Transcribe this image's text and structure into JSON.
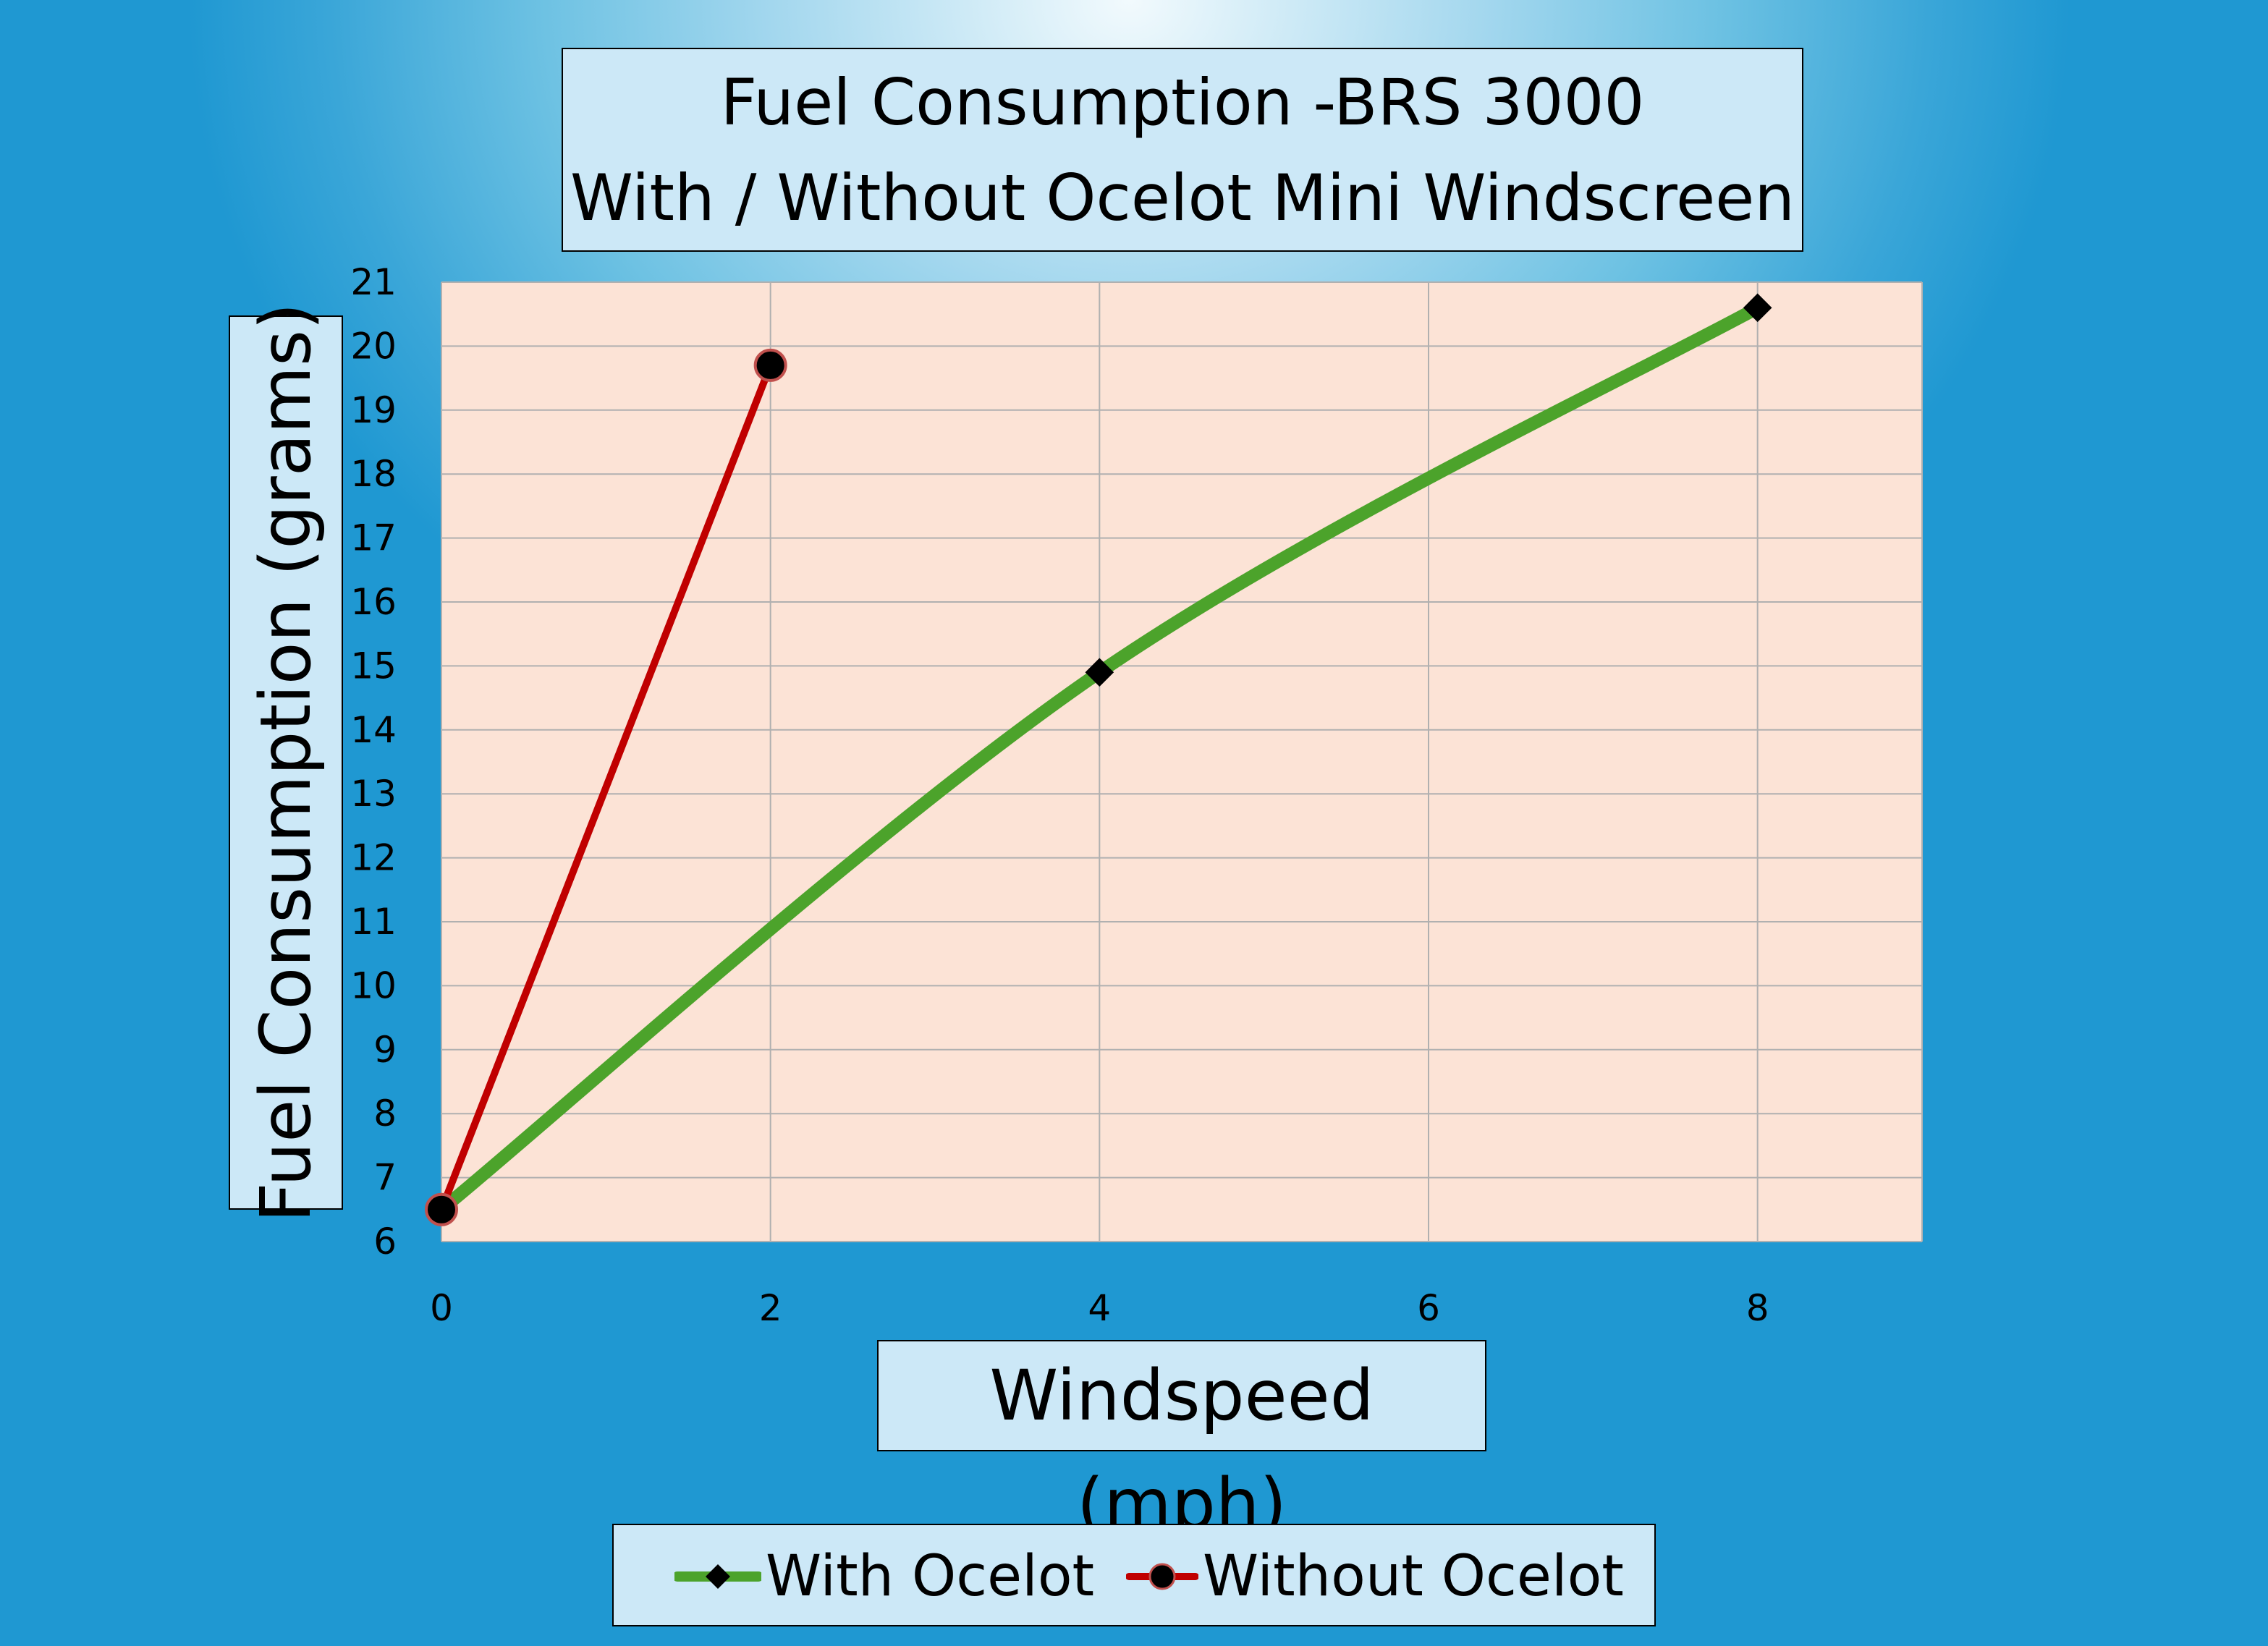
{
  "colors": {
    "plot_bg": "#fce3d6",
    "grid": "#b0b0b0",
    "with_line": "#4ca32b",
    "with_marker": "#000000",
    "without_line": "#c00000",
    "without_marker": "#000000",
    "without_marker_edge": "#c0504d",
    "label_box": "#cce8f7"
  },
  "chart_data": {
    "type": "line",
    "title_lines": [
      "Fuel Consumption -BRS 3000",
      "With / Without Ocelot Mini Windscreen"
    ],
    "xlabel": "Windspeed (mph)",
    "ylabel": "Fuel Consumption (grams)",
    "xlim": [
      0,
      9
    ],
    "ylim": [
      6,
      21
    ],
    "xticks": [
      0,
      2,
      4,
      6,
      8
    ],
    "yticks": [
      6,
      7,
      8,
      9,
      10,
      11,
      12,
      13,
      14,
      15,
      16,
      17,
      18,
      19,
      20,
      21
    ],
    "grid": true,
    "smooth": true,
    "legend_position": "bottom",
    "series": [
      {
        "name": "With Ocelot",
        "marker": "diamond",
        "x": [
          0,
          4,
          8
        ],
        "y": [
          6.5,
          14.9,
          20.6
        ]
      },
      {
        "name": "Without Ocelot",
        "marker": "circle",
        "x": [
          0,
          2
        ],
        "y": [
          6.5,
          19.7
        ]
      }
    ]
  }
}
